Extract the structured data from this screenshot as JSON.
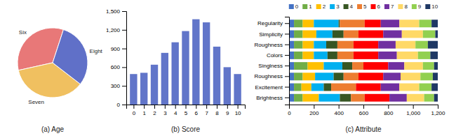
{
  "chart_data": [
    {
      "type": "pie",
      "title": "(a) Age",
      "categories": [
        "Six",
        "Seven",
        "Eight"
      ],
      "values": [
        33.5,
        36.0,
        30.5
      ],
      "colors": [
        "#E87878",
        "#F0C060",
        "#6070C8"
      ]
    },
    {
      "type": "bar",
      "title": "(b) Score",
      "x": [
        0,
        1,
        2,
        3,
        4,
        5,
        6,
        7,
        8,
        9,
        10
      ],
      "values": [
        490,
        510,
        640,
        830,
        1000,
        1180,
        1370,
        1320,
        930,
        600,
        490
      ],
      "color": "#6175C9",
      "xlim": [
        -0.7,
        10.7
      ],
      "xticks": [
        0,
        1,
        2,
        3,
        4,
        5,
        6,
        7,
        8,
        9,
        10
      ],
      "ylim": [
        0,
        1500
      ],
      "yticks": [
        0,
        300,
        600,
        900,
        {
          "value": 1200,
          "label": "1,200"
        },
        {
          "value": 1500,
          "label": "1,500"
        }
      ]
    },
    {
      "type": "bar",
      "orientation": "horizontal",
      "stacked": true,
      "title": "(c) Attribute",
      "categories": [
        "Regularity",
        "Simplicity",
        "Roughness",
        "Colors",
        "Singlness",
        "Roughness",
        "Excitement",
        "Brightness"
      ],
      "series": [
        {
          "name": "0",
          "color": "#4472C4",
          "values": [
            40,
            40,
            40,
            40,
            40,
            40,
            40,
            40
          ]
        },
        {
          "name": "1",
          "color": "#70AD47",
          "values": [
            70,
            70,
            70,
            70,
            110,
            70,
            60,
            70
          ]
        },
        {
          "name": "2",
          "color": "#FFC000",
          "values": [
            90,
            110,
            90,
            90,
            130,
            100,
            80,
            130
          ]
        },
        {
          "name": "3",
          "color": "#00B0F0",
          "values": [
            200,
            130,
            100,
            110,
            150,
            150,
            100,
            170
          ]
        },
        {
          "name": "4",
          "color": "#375623",
          "values": [
            10,
            90,
            90,
            80,
            80,
            80,
            60,
            90
          ]
        },
        {
          "name": "5",
          "color": "#ED7D31",
          "values": [
            200,
            120,
            130,
            130,
            90,
            120,
            200,
            110
          ]
        },
        {
          "name": "6",
          "color": "#FF0000",
          "values": [
            130,
            200,
            200,
            200,
            200,
            200,
            200,
            200
          ]
        },
        {
          "name": "7",
          "color": "#7030A0",
          "values": [
            150,
            150,
            140,
            150,
            130,
            140,
            150,
            140
          ]
        },
        {
          "name": "8",
          "color": "#FFD966",
          "values": [
            160,
            170,
            160,
            170,
            150,
            160,
            160,
            140
          ]
        },
        {
          "name": "9",
          "color": "#92D050",
          "values": [
            100,
            100,
            100,
            100,
            90,
            100,
            100,
            80
          ]
        },
        {
          "name": "10",
          "color": "#1F3864",
          "values": [
            50,
            20,
            80,
            60,
            30,
            40,
            50,
            30
          ]
        }
      ],
      "xlim": [
        0,
        1200
      ],
      "xticks": [
        0,
        200,
        400,
        600,
        800,
        {
          "value": 1000,
          "label": "1,000"
        },
        {
          "value": 1200,
          "label": "1,200"
        }
      ],
      "legend": "top"
    }
  ]
}
